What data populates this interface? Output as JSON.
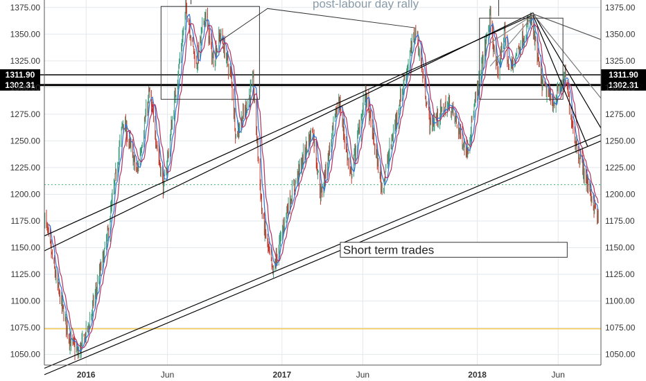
{
  "chart_data": {
    "type": "candlestick",
    "instrument_price_range": [
      1040,
      1382
    ],
    "y_ticks": [
      1050,
      1075,
      1100,
      1125,
      1150,
      1175,
      1200,
      1225,
      1250,
      1275,
      1300,
      1325,
      1350,
      1375
    ],
    "y_tick_labels": [
      "1050.00",
      "1075.00",
      "1100.00",
      "1125.00",
      "1150.00",
      "1175.00",
      "1200.00",
      "1225.00",
      "1250.00",
      "1275.00",
      "1300.00",
      "1325.00",
      "1350.00",
      "1375.00"
    ],
    "x_range": [
      "2015-10-15",
      "2018-08-20"
    ],
    "x_ticks": [
      {
        "date": "2016-01-01",
        "label": "2016",
        "bold": true
      },
      {
        "date": "2016-06-01",
        "label": "Jun",
        "bold": false
      },
      {
        "date": "2017-01-01",
        "label": "2017",
        "bold": true
      },
      {
        "date": "2017-06-01",
        "label": "Jun",
        "bold": false
      },
      {
        "date": "2018-01-01",
        "label": "2018",
        "bold": true
      },
      {
        "date": "2018-06-01",
        "label": "Jun",
        "bold": false
      }
    ],
    "price_path": [
      [
        "2015-10-15",
        1180
      ],
      [
        "2015-11-10",
        1110
      ],
      [
        "2015-12-01",
        1065
      ],
      [
        "2015-12-17",
        1050
      ],
      [
        "2016-01-05",
        1075
      ],
      [
        "2016-02-10",
        1160
      ],
      [
        "2016-03-10",
        1270
      ],
      [
        "2016-04-05",
        1220
      ],
      [
        "2016-04-28",
        1295
      ],
      [
        "2016-05-25",
        1205
      ],
      [
        "2016-06-15",
        1290
      ],
      [
        "2016-07-06",
        1375
      ],
      [
        "2016-07-25",
        1320
      ],
      [
        "2016-08-10",
        1370
      ],
      [
        "2016-08-25",
        1325
      ],
      [
        "2016-09-08",
        1350
      ],
      [
        "2016-09-28",
        1310
      ],
      [
        "2016-10-07",
        1255
      ],
      [
        "2016-10-28",
        1285
      ],
      [
        "2016-11-08",
        1305
      ],
      [
        "2016-11-25",
        1180
      ],
      [
        "2016-12-15",
        1125
      ],
      [
        "2017-01-10",
        1185
      ],
      [
        "2017-02-10",
        1235
      ],
      [
        "2017-02-27",
        1262
      ],
      [
        "2017-03-15",
        1198
      ],
      [
        "2017-04-17",
        1290
      ],
      [
        "2017-05-09",
        1215
      ],
      [
        "2017-06-06",
        1295
      ],
      [
        "2017-07-07",
        1205
      ],
      [
        "2017-08-10",
        1290
      ],
      [
        "2017-09-08",
        1355
      ],
      [
        "2017-10-05",
        1265
      ],
      [
        "2017-11-10",
        1285
      ],
      [
        "2017-12-12",
        1240
      ],
      [
        "2018-01-25",
        1365
      ],
      [
        "2018-02-08",
        1310
      ],
      [
        "2018-02-20",
        1355
      ],
      [
        "2018-03-01",
        1315
      ],
      [
        "2018-04-11",
        1365
      ],
      [
        "2018-05-01",
        1305
      ],
      [
        "2018-05-22",
        1285
      ],
      [
        "2018-06-14",
        1310
      ],
      [
        "2018-07-03",
        1250
      ],
      [
        "2018-07-20",
        1220
      ],
      [
        "2018-08-16",
        1175
      ]
    ],
    "horizontal_levels": [
      {
        "value": 1311.9,
        "label": "1311.90",
        "color": "#000000",
        "width": 1.5,
        "style": "solid"
      },
      {
        "value": 1302.31,
        "label": "1302.31",
        "color": "#000000",
        "width": 3,
        "style": "solid"
      },
      {
        "value": 1209,
        "label": "",
        "color": "#3cb371",
        "width": 1,
        "style": "dotted"
      },
      {
        "value": 1074,
        "label": "",
        "color": "#f2c94c",
        "width": 1.5,
        "style": "solid"
      }
    ],
    "trend_lines": [
      {
        "from": [
          "2015-10-15",
          1037
        ],
        "to": [
          "2018-08-20",
          1256
        ],
        "color": "#000000"
      },
      {
        "from": [
          "2015-10-15",
          1031
        ],
        "to": [
          "2018-08-20",
          1250
        ],
        "color": "#000000"
      },
      {
        "from": [
          "2015-10-15",
          1161
        ],
        "to": [
          "2018-04-15",
          1368
        ],
        "color": "#000000"
      },
      {
        "from": [
          "2015-10-15",
          1147
        ],
        "to": [
          "2018-04-15",
          1370
        ],
        "color": "#000000"
      },
      {
        "from": [
          "2018-04-15",
          1368
        ],
        "to": [
          "2018-07-26",
          1245
        ],
        "color": "#000000"
      },
      {
        "from": [
          "2018-04-15",
          1370
        ],
        "to": [
          "2018-08-20",
          1262
        ],
        "color": "#000000"
      },
      {
        "from": [
          "2018-04-15",
          1369
        ],
        "to": [
          "2018-08-20",
          1345
        ],
        "color": "#555555"
      },
      {
        "from": [
          "2018-04-15",
          1369
        ],
        "to": [
          "2018-08-20",
          1290
        ],
        "color": "#777777"
      },
      {
        "from": [
          "2018-01-20",
          1340
        ],
        "to": [
          "2018-04-15",
          1368
        ],
        "color": "#888888"
      },
      {
        "from": [
          "2018-01-25",
          1320
        ],
        "to": [
          "2018-04-15",
          1367
        ],
        "color": "#888888"
      }
    ],
    "boxes": [
      {
        "from": [
          "2016-05-20",
          1289
        ],
        "to": [
          "2016-11-20",
          1376
        ],
        "color": "#333333"
      },
      {
        "from": [
          "2018-01-05",
          1289
        ],
        "to": [
          "2018-06-10",
          1365
        ],
        "color": "#333333"
      }
    ],
    "annotation": {
      "text": "post-labour day rally",
      "bracket_left_date": "2016-07-15",
      "bracket_right_date": "2018-02-10",
      "bracket_price": 1384,
      "bracket_drop_left": 1378,
      "bracket_drop_right": 1367,
      "pointer_apex": [
        "2016-12-05",
        1374
      ],
      "pointer_left": [
        "2016-09-06",
        1343
      ],
      "pointer_right": [
        "2017-09-06",
        1356
      ]
    },
    "text_box": {
      "text": "Short term trades",
      "from": [
        "2017-04-20",
        1155
      ],
      "to": [
        "2018-06-18",
        1141
      ]
    }
  }
}
